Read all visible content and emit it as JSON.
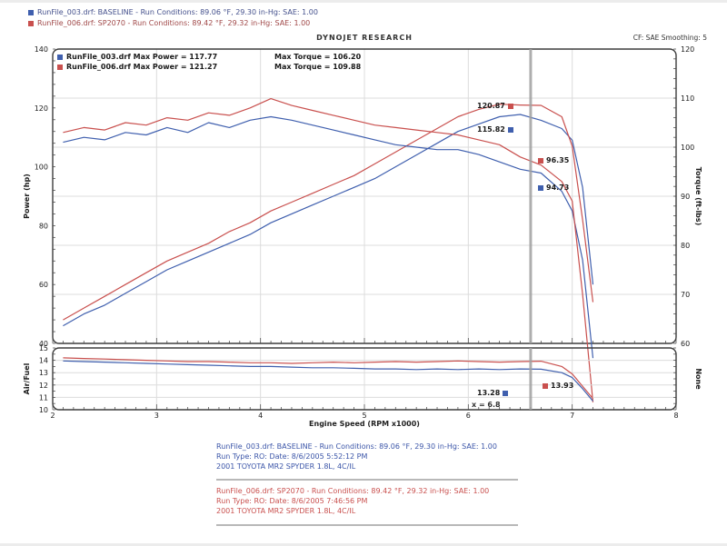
{
  "title_bar": {
    "title": "DYNOJET RESEARCH",
    "right_info": "CF: SAE   Smoothing: 5"
  },
  "top_legend": {
    "line1": "RunFile_003.drf: BASELINE  -  Run Conditions: 89.06 °F, 29.30 in-Hg: SAE: 1.00",
    "line2": "RunFile_006.drf: SP2070  -  Run Conditions: 89.42 °F, 29.32 in-Hg: SAE: 1.00"
  },
  "chart_legend": {
    "run1_label": "RunFile_003.drf Max Power = 117.77",
    "run1_torque": "Max Torque = 106.20",
    "run2_label": "RunFile_006.drf Max Power = 121.27",
    "run2_torque": "Max Torque = 109.88"
  },
  "cursor_labels": {
    "power_run2": "120.87",
    "power_run1": "115.82",
    "torque_run2": "96.35",
    "torque_run1": "94.73",
    "af_run1": "13.28",
    "af_run2": "13.93",
    "cursor_x": "x = 6.8"
  },
  "axis_titles": {
    "x": "Engine Speed (RPM x1000)"
  },
  "footer": {
    "run1": [
      "RunFile_003.drf: BASELINE  -  Run Conditions: 89.06 °F, 29.30 in-Hg: SAE: 1.00",
      "Run Type: RO: Date: 8/6/2005 5:52:12 PM",
      "2001 TOYOTA MR2 SPYDER 1.8L, 4C/IL"
    ],
    "run2": [
      "RunFile_006.drf: SP2070  -  Run Conditions: 89.42 °F, 29.32 in-Hg: SAE: 1.00",
      "Run Type: RO: Date: 8/6/2005 7:46:56 PM",
      "2001 TOYOTA MR2 SPYDER 1.8L, 4C/IL"
    ]
  },
  "colors": {
    "run1": "#3f5fae",
    "run2": "#c9504e",
    "grid": "#dcdcdc",
    "frame": "#3d3d3d",
    "cursor": "#a0a0a0",
    "tick": "#555555"
  },
  "cursor": {
    "rpm": 6.6
  },
  "chart_data": [
    {
      "type": "line",
      "title": "Power and Torque vs Engine Speed",
      "xlabel": "Engine Speed (RPM x1000)",
      "x_range": [
        2,
        8
      ],
      "x_ticks": [
        2,
        3,
        4,
        5,
        6,
        7,
        8
      ],
      "grid": true,
      "grid_axis": "right",
      "show_x_labels": false,
      "left_axis": {
        "label": "Power (hp)",
        "range": [
          40,
          140
        ],
        "ticks": [
          40,
          60,
          80,
          100,
          120,
          140
        ],
        "minor_step": 4
      },
      "right_axis": {
        "label": "Torque (ft-lbs)",
        "range": [
          60,
          120
        ],
        "ticks": [
          60,
          70,
          80,
          90,
          100,
          110,
          120
        ],
        "minor_step": 2
      },
      "x": [
        2.1,
        2.3,
        2.5,
        2.7,
        2.9,
        3.1,
        3.3,
        3.5,
        3.7,
        3.9,
        4.1,
        4.3,
        4.5,
        4.7,
        4.9,
        5.1,
        5.3,
        5.5,
        5.7,
        5.9,
        6.1,
        6.3,
        6.5,
        6.7,
        6.9,
        7.0,
        7.1,
        7.2
      ],
      "series": [
        {
          "name": "RunFile_003.drf Power (hp)",
          "axis": "left",
          "color_key": "run1",
          "values": [
            46,
            50,
            53,
            57,
            61,
            65,
            68,
            71,
            74,
            77,
            81,
            84,
            87,
            90,
            93,
            96,
            100,
            104,
            108,
            112,
            114.5,
            117.0,
            117.77,
            115.8,
            113,
            109,
            93,
            60
          ]
        },
        {
          "name": "RunFile_006.drf Power (hp)",
          "axis": "left",
          "color_key": "run2",
          "values": [
            48,
            52,
            56,
            60,
            64,
            68,
            71,
            74,
            78,
            81,
            85,
            88,
            91,
            94,
            97,
            101,
            105,
            109,
            113,
            117,
            119.5,
            121.27,
            121.0,
            120.87,
            117,
            107,
            82,
            54
          ]
        },
        {
          "name": "RunFile_003.drf Torque (ft-lbs)",
          "axis": "right",
          "color_key": "run1",
          "values": [
            101,
            102,
            101.5,
            103,
            102.5,
            104,
            103,
            105,
            104,
            105.5,
            106.2,
            105.5,
            104.5,
            103.5,
            102.5,
            101.5,
            100.5,
            100,
            99.5,
            99.5,
            98.5,
            97,
            95.5,
            94.73,
            91,
            87,
            77,
            57
          ]
        },
        {
          "name": "RunFile_006.drf Torque (ft-lbs)",
          "axis": "right",
          "color_key": "run2",
          "values": [
            103,
            104,
            103.5,
            105,
            104.5,
            106,
            105.5,
            107,
            106.5,
            108,
            109.88,
            108.5,
            107.5,
            106.5,
            105.5,
            104.5,
            104,
            103.5,
            103,
            102.5,
            101.5,
            100.5,
            98,
            96.35,
            93,
            89,
            70,
            48
          ]
        }
      ]
    },
    {
      "type": "line",
      "title": "Air/Fuel vs Engine Speed",
      "xlabel": "Engine Speed (RPM x1000)",
      "x_range": [
        2,
        8
      ],
      "x_ticks": [
        2,
        3,
        4,
        5,
        6,
        7,
        8
      ],
      "grid": true,
      "grid_axis": "left",
      "show_x_labels": true,
      "left_axis": {
        "label": "Air/Fuel",
        "range": [
          10,
          15
        ],
        "ticks": [
          10,
          11,
          12,
          13,
          14,
          15
        ],
        "minor_step": 0.5
      },
      "right_axis": {
        "label": "None",
        "range": [
          10,
          15
        ],
        "ticks": [],
        "minor_step": 0.5
      },
      "x": [
        2.1,
        2.3,
        2.5,
        2.7,
        2.9,
        3.1,
        3.3,
        3.5,
        3.7,
        3.9,
        4.1,
        4.3,
        4.5,
        4.7,
        4.9,
        5.1,
        5.3,
        5.5,
        5.7,
        5.9,
        6.1,
        6.3,
        6.5,
        6.7,
        6.9,
        7.0,
        7.1,
        7.2
      ],
      "series": [
        {
          "name": "RunFile_003.drf Air/Fuel",
          "axis": "left",
          "color_key": "run1",
          "values": [
            13.95,
            13.9,
            13.85,
            13.8,
            13.75,
            13.7,
            13.65,
            13.6,
            13.55,
            13.5,
            13.5,
            13.45,
            13.4,
            13.4,
            13.35,
            13.3,
            13.3,
            13.25,
            13.3,
            13.25,
            13.3,
            13.25,
            13.3,
            13.28,
            13.0,
            12.6,
            11.7,
            10.7
          ]
        },
        {
          "name": "RunFile_006.drf Air/Fuel",
          "axis": "left",
          "color_key": "run2",
          "values": [
            14.2,
            14.15,
            14.1,
            14.05,
            14.0,
            13.95,
            13.9,
            13.9,
            13.85,
            13.8,
            13.8,
            13.75,
            13.8,
            13.85,
            13.8,
            13.85,
            13.9,
            13.85,
            13.9,
            13.95,
            13.9,
            13.85,
            13.9,
            13.93,
            13.5,
            12.9,
            11.9,
            10.9
          ]
        }
      ]
    }
  ]
}
